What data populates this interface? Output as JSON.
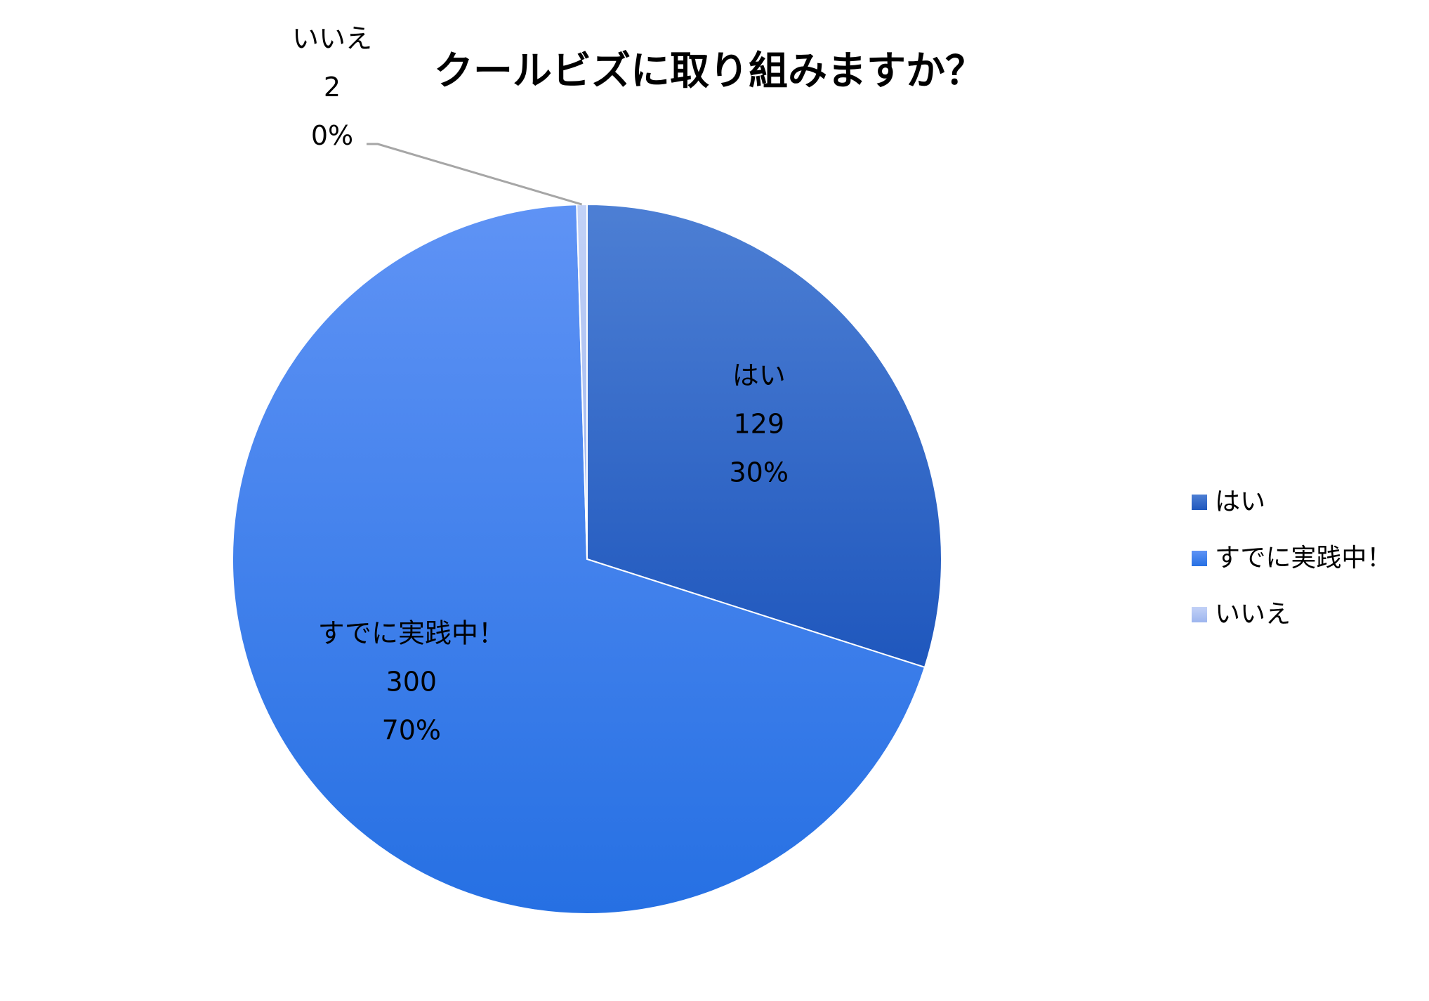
{
  "chart_data": {
    "type": "pie",
    "title": "クールビズに取り組みますか？",
    "slices": [
      {
        "label": "はい",
        "value": 129,
        "percent": "30%",
        "color_top": "#4d7fd4",
        "color_bottom": "#1f57bd"
      },
      {
        "label": "すでに実践中！",
        "value": 300,
        "percent": "70%",
        "color_top": "#5f93f5",
        "color_bottom": "#2670e3"
      },
      {
        "label": "いいえ",
        "value": 2,
        "percent": "0%",
        "color_top": "#c3d2f7",
        "color_bottom": "#9db5ee"
      }
    ],
    "legend_position": "right"
  }
}
